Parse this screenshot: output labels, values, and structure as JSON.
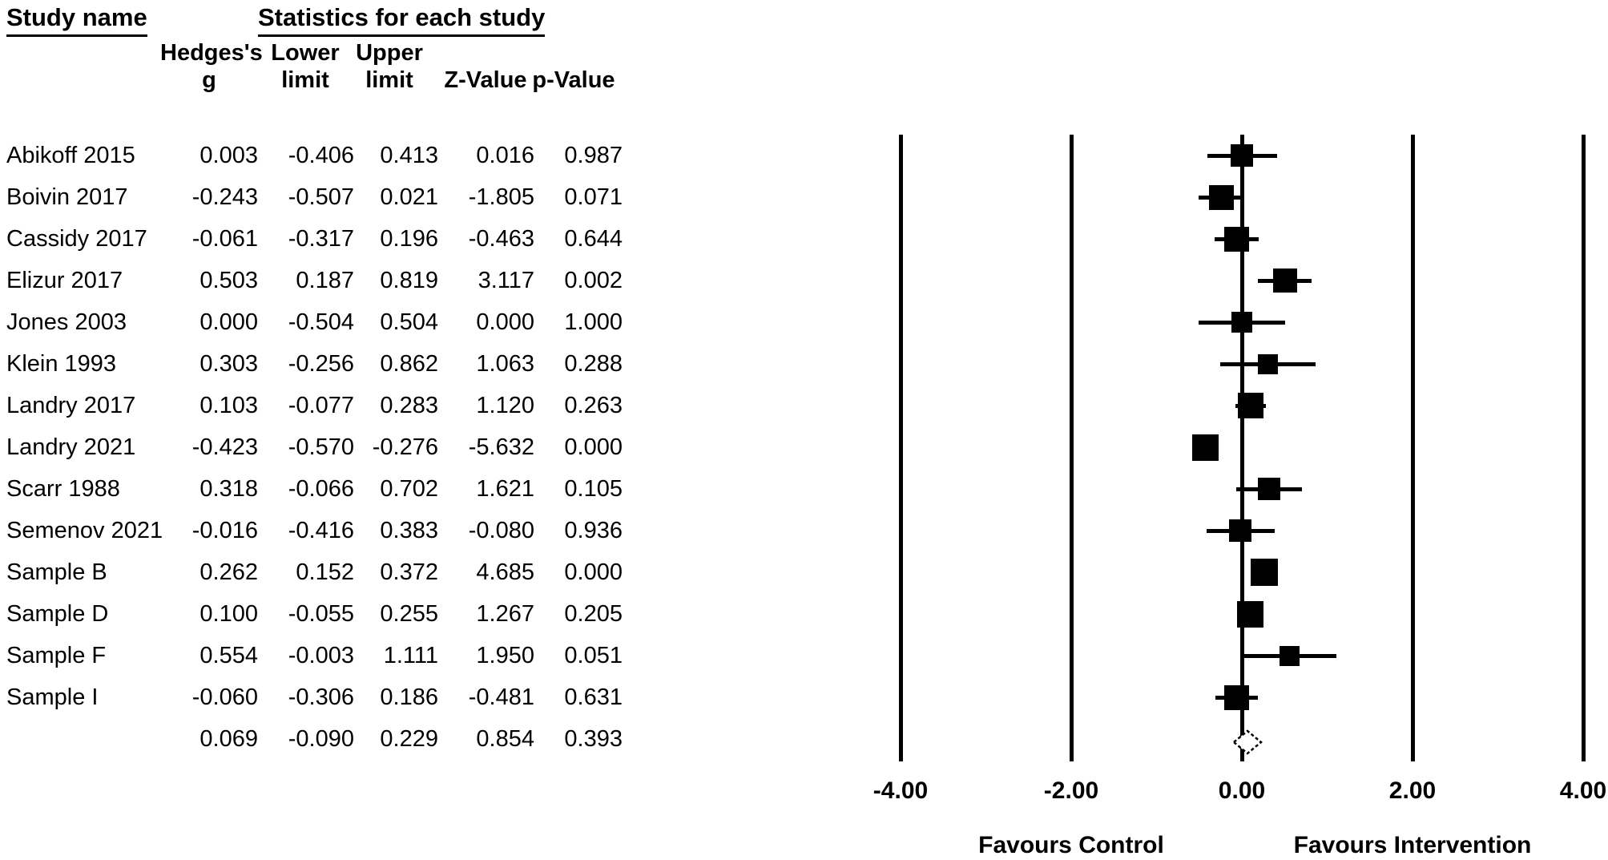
{
  "headers": {
    "study_name": "Study name",
    "statistics": "Statistics for each study",
    "hedges_line1": "Hedges's",
    "hedges_line2": "g",
    "lower_line1": "Lower",
    "lower_line2": "limit",
    "upper_line1": "Upper",
    "upper_line2": "limit",
    "z": "Z-Value",
    "p": "p-Value"
  },
  "chart_data": {
    "type": "forest",
    "effect_measure": "Hedges's g",
    "studies": [
      {
        "name": "Abikoff 2015",
        "g": "0.003",
        "lower": "-0.406",
        "upper": "0.413",
        "z": "0.016",
        "p": "0.987"
      },
      {
        "name": "Boivin 2017",
        "g": "-0.243",
        "lower": "-0.507",
        "upper": "0.021",
        "z": "-1.805",
        "p": "0.071"
      },
      {
        "name": "Cassidy 2017",
        "g": "-0.061",
        "lower": "-0.317",
        "upper": "0.196",
        "z": "-0.463",
        "p": "0.644"
      },
      {
        "name": "Elizur 2017",
        "g": "0.503",
        "lower": "0.187",
        "upper": "0.819",
        "z": "3.117",
        "p": "0.002"
      },
      {
        "name": "Jones 2003",
        "g": "0.000",
        "lower": "-0.504",
        "upper": "0.504",
        "z": "0.000",
        "p": "1.000"
      },
      {
        "name": "Klein 1993",
        "g": "0.303",
        "lower": "-0.256",
        "upper": "0.862",
        "z": "1.063",
        "p": "0.288"
      },
      {
        "name": "Landry 2017",
        "g": "0.103",
        "lower": "-0.077",
        "upper": "0.283",
        "z": "1.120",
        "p": "0.263"
      },
      {
        "name": "Landry 2021",
        "g": "-0.423",
        "lower": "-0.570",
        "upper": "-0.276",
        "z": "-5.632",
        "p": "0.000"
      },
      {
        "name": "Scarr 1988",
        "g": "0.318",
        "lower": "-0.066",
        "upper": "0.702",
        "z": "1.621",
        "p": "0.105"
      },
      {
        "name": "Semenov 2021",
        "g": "-0.016",
        "lower": "-0.416",
        "upper": "0.383",
        "z": "-0.080",
        "p": "0.936"
      },
      {
        "name": "Sample B",
        "g": "0.262",
        "lower": "0.152",
        "upper": "0.372",
        "z": "4.685",
        "p": "0.000"
      },
      {
        "name": "Sample D",
        "g": "0.100",
        "lower": "-0.055",
        "upper": "0.255",
        "z": "1.267",
        "p": "0.205"
      },
      {
        "name": "Sample F",
        "g": "0.554",
        "lower": "-0.003",
        "upper": "1.111",
        "z": "1.950",
        "p": "0.051"
      },
      {
        "name": "Sample I",
        "g": "-0.060",
        "lower": "-0.306",
        "upper": "0.186",
        "z": "-0.481",
        "p": "0.631"
      }
    ],
    "overall": {
      "name": "",
      "g": "0.069",
      "lower": "-0.090",
      "upper": "0.229",
      "z": "0.854",
      "p": "0.393"
    },
    "axis": {
      "xlim": [
        -4.0,
        4.0
      ],
      "ticks": [
        -4,
        -2,
        0,
        2,
        4
      ],
      "tick_labels": [
        "-4.00",
        "-2.00",
        "0.00",
        "2.00",
        "4.00"
      ],
      "grid": "vertical-lines"
    },
    "footer_labels": {
      "left": "Favours Control",
      "right": "Favours Intervention"
    },
    "colors": {
      "marker": "#000000",
      "line": "#000000",
      "diamond_fill": "#ffffff",
      "diamond_outline": "#000000"
    }
  }
}
